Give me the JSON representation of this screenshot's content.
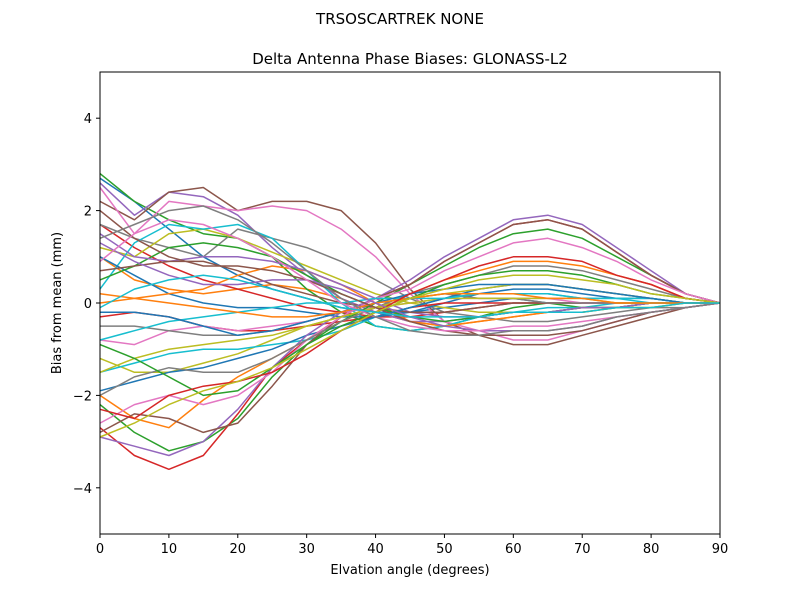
{
  "suptitle": "TRSOSCARTREK    NONE",
  "chart_data": {
    "type": "line",
    "title": "Delta Antenna Phase Biases: GLONASS-L2",
    "xlabel": "Elvation angle (degrees)",
    "ylabel": "Bias from mean (mm)",
    "xlim": [
      0,
      90
    ],
    "ylim": [
      -5,
      5
    ],
    "xticks": [
      0,
      10,
      20,
      30,
      40,
      50,
      60,
      70,
      80,
      90
    ],
    "yticks": [
      -4,
      -2,
      0,
      2,
      4
    ],
    "grid": false,
    "legend": "none",
    "x": [
      0,
      5,
      10,
      15,
      20,
      25,
      30,
      35,
      40,
      45,
      50,
      55,
      60,
      65,
      70,
      75,
      80,
      85,
      90
    ],
    "colors": [
      "#1f77b4",
      "#ff7f0e",
      "#2ca02c",
      "#d62728",
      "#9467bd",
      "#8c564b",
      "#e377c2",
      "#7f7f7f",
      "#bcbd22",
      "#17becf"
    ],
    "series": [
      {
        "values": [
          2.7,
          2.2,
          1.6,
          1.0,
          0.6,
          0.3,
          0.1,
          -0.1,
          -0.2,
          -0.2,
          -0.1,
          0.0,
          0.1,
          0.0,
          0.0,
          0.0,
          0.0,
          0.0,
          0.0
        ]
      },
      {
        "values": [
          1.0,
          0.5,
          0.3,
          0.2,
          0.3,
          0.4,
          0.3,
          0.1,
          -0.2,
          -0.4,
          -0.5,
          -0.4,
          -0.3,
          -0.2,
          -0.2,
          -0.1,
          -0.1,
          0.0,
          0.0
        ]
      },
      {
        "values": [
          2.8,
          2.2,
          1.8,
          1.5,
          1.4,
          1.0,
          0.3,
          -0.2,
          -0.5,
          -0.6,
          -0.5,
          -0.3,
          -0.1,
          0.0,
          -0.1,
          -0.1,
          0.0,
          0.0,
          0.0
        ]
      },
      {
        "values": [
          1.7,
          1.2,
          0.8,
          0.5,
          0.3,
          0.1,
          -0.1,
          -0.2,
          -0.3,
          -0.3,
          -0.2,
          -0.1,
          0.0,
          0.0,
          0.0,
          0.0,
          0.0,
          0.0,
          0.0
        ]
      },
      {
        "values": [
          2.6,
          1.9,
          2.4,
          2.3,
          1.9,
          1.2,
          0.6,
          0.1,
          -0.2,
          -0.4,
          -0.4,
          -0.3,
          -0.2,
          -0.2,
          -0.1,
          -0.1,
          0.0,
          0.0,
          0.0
        ]
      },
      {
        "values": [
          2.2,
          1.8,
          2.4,
          2.5,
          2.0,
          2.2,
          2.2,
          2.0,
          1.3,
          0.3,
          -0.4,
          -0.7,
          -0.9,
          -0.9,
          -0.7,
          -0.5,
          -0.3,
          -0.1,
          0.0
        ]
      },
      {
        "values": [
          2.5,
          1.5,
          2.2,
          2.1,
          2.0,
          2.1,
          2.0,
          1.6,
          1.0,
          0.2,
          -0.4,
          -0.6,
          -0.8,
          -0.8,
          -0.6,
          -0.4,
          -0.2,
          -0.1,
          0.0
        ]
      },
      {
        "values": [
          1.7,
          1.4,
          1.2,
          1.0,
          1.6,
          1.4,
          1.2,
          0.9,
          0.5,
          0.1,
          -0.2,
          -0.3,
          -0.4,
          -0.4,
          -0.3,
          -0.2,
          -0.1,
          -0.1,
          0.0
        ]
      },
      {
        "values": [
          1.2,
          1.0,
          1.5,
          1.6,
          1.4,
          1.1,
          0.8,
          0.5,
          0.2,
          0.0,
          -0.1,
          -0.2,
          -0.2,
          -0.2,
          -0.2,
          -0.1,
          -0.1,
          0.0,
          0.0
        ]
      },
      {
        "values": [
          0.3,
          1.3,
          1.7,
          1.6,
          1.7,
          1.4,
          0.7,
          0.0,
          -0.5,
          -0.6,
          -0.5,
          -0.3,
          -0.2,
          -0.1,
          -0.1,
          0.0,
          0.0,
          0.0,
          0.0
        ]
      },
      {
        "values": [
          1.0,
          0.6,
          0.2,
          0.0,
          -0.1,
          -0.1,
          -0.2,
          -0.3,
          -0.3,
          -0.2,
          0.0,
          0.2,
          0.3,
          0.3,
          0.2,
          0.1,
          0.1,
          0.0,
          0.0
        ]
      },
      {
        "values": [
          0.0,
          0.1,
          0.2,
          0.3,
          0.6,
          0.8,
          0.7,
          0.4,
          0.0,
          -0.4,
          -0.5,
          -0.4,
          -0.3,
          -0.2,
          -0.1,
          -0.1,
          0.0,
          0.0,
          0.0
        ]
      },
      {
        "values": [
          0.5,
          0.8,
          1.2,
          1.3,
          1.2,
          1.0,
          0.6,
          0.2,
          -0.1,
          -0.3,
          -0.4,
          -0.3,
          -0.2,
          -0.2,
          -0.1,
          -0.1,
          0.0,
          0.0,
          0.0
        ]
      },
      {
        "values": [
          -0.3,
          -0.2,
          -0.3,
          -0.5,
          -0.6,
          -0.6,
          -0.5,
          -0.4,
          -0.3,
          -0.1,
          0.0,
          0.0,
          0.0,
          0.0,
          0.0,
          0.0,
          0.0,
          0.0,
          0.0
        ]
      },
      {
        "values": [
          1.5,
          1.0,
          0.9,
          1.0,
          1.0,
          0.9,
          0.7,
          0.4,
          0.1,
          -0.2,
          -0.3,
          -0.3,
          -0.2,
          -0.2,
          -0.1,
          -0.1,
          0.0,
          0.0,
          0.0
        ]
      },
      {
        "values": [
          0.7,
          0.8,
          0.9,
          0.9,
          0.7,
          0.4,
          0.2,
          0.0,
          -0.1,
          -0.2,
          -0.2,
          -0.1,
          0.0,
          0.0,
          0.0,
          0.0,
          0.0,
          0.0,
          0.0
        ]
      },
      {
        "values": [
          -0.8,
          -0.9,
          -0.6,
          -0.5,
          -0.6,
          -0.5,
          -0.4,
          -0.2,
          -0.1,
          0.0,
          0.1,
          0.1,
          0.1,
          0.1,
          0.0,
          0.0,
          0.0,
          0.0,
          0.0
        ]
      },
      {
        "values": [
          -0.5,
          -0.5,
          -0.6,
          -0.7,
          -0.7,
          -0.6,
          -0.4,
          -0.2,
          0.0,
          0.1,
          0.2,
          0.1,
          0.1,
          0.0,
          0.0,
          0.0,
          0.0,
          0.0,
          0.0
        ]
      },
      {
        "values": [
          -1.2,
          -1.5,
          -1.5,
          -1.3,
          -1.1,
          -0.8,
          -0.5,
          -0.3,
          -0.1,
          0.0,
          0.1,
          0.1,
          0.1,
          0.1,
          0.1,
          0.0,
          0.0,
          0.0,
          0.0
        ]
      },
      {
        "values": [
          -1.5,
          -1.3,
          -1.1,
          -1.0,
          -1.0,
          -0.9,
          -0.8,
          -0.6,
          -0.3,
          -0.1,
          0.1,
          0.2,
          0.2,
          0.2,
          0.1,
          0.1,
          0.0,
          0.0,
          0.0
        ]
      },
      {
        "values": [
          -1.9,
          -1.7,
          -1.5,
          -1.4,
          -1.2,
          -1.0,
          -0.7,
          -0.5,
          -0.3,
          -0.1,
          0.1,
          0.3,
          0.4,
          0.4,
          0.3,
          0.2,
          0.1,
          0.0,
          0.0
        ]
      },
      {
        "values": [
          -2.0,
          -2.5,
          -2.7,
          -2.1,
          -1.6,
          -1.2,
          -0.8,
          -0.4,
          -0.1,
          0.2,
          0.5,
          0.7,
          0.9,
          0.9,
          0.8,
          0.6,
          0.4,
          0.1,
          0.0
        ]
      },
      {
        "values": [
          -2.2,
          -2.8,
          -3.2,
          -3.0,
          -2.5,
          -1.6,
          -0.9,
          -0.4,
          0.0,
          0.4,
          0.8,
          1.2,
          1.5,
          1.6,
          1.4,
          1.0,
          0.6,
          0.2,
          0.0
        ]
      },
      {
        "values": [
          -2.7,
          -3.3,
          -3.6,
          -3.3,
          -2.4,
          -1.4,
          -0.8,
          -0.3,
          0.1,
          0.4,
          0.9,
          1.3,
          1.7,
          1.8,
          1.6,
          1.1,
          0.6,
          0.2,
          0.0
        ]
      },
      {
        "values": [
          -2.9,
          -3.1,
          -3.3,
          -3.0,
          -2.3,
          -1.4,
          -0.7,
          -0.2,
          0.1,
          0.5,
          1.0,
          1.4,
          1.8,
          1.9,
          1.7,
          1.2,
          0.7,
          0.2,
          0.0
        ]
      },
      {
        "values": [
          -2.8,
          -2.4,
          -2.5,
          -2.8,
          -2.6,
          -1.8,
          -0.9,
          -0.3,
          0.1,
          0.4,
          0.9,
          1.3,
          1.7,
          1.8,
          1.6,
          1.1,
          0.6,
          0.2,
          0.0
        ]
      },
      {
        "values": [
          -2.6,
          -2.2,
          -2.0,
          -2.2,
          -2.0,
          -1.5,
          -0.8,
          -0.3,
          0.1,
          0.3,
          0.7,
          1.0,
          1.3,
          1.4,
          1.2,
          0.9,
          0.5,
          0.2,
          0.0
        ]
      },
      {
        "values": [
          -2.0,
          -1.6,
          -1.4,
          -1.5,
          -1.5,
          -1.2,
          -0.8,
          -0.4,
          -0.1,
          0.2,
          0.4,
          0.6,
          0.8,
          0.8,
          0.7,
          0.5,
          0.3,
          0.1,
          0.0
        ]
      },
      {
        "values": [
          -1.5,
          -1.2,
          -1.0,
          -0.9,
          -0.8,
          -0.7,
          -0.5,
          -0.3,
          -0.1,
          0.1,
          0.2,
          0.3,
          0.4,
          0.4,
          0.3,
          0.2,
          0.1,
          0.0,
          0.0
        ]
      },
      {
        "values": [
          -0.8,
          -0.6,
          -0.4,
          -0.3,
          -0.2,
          -0.1,
          0.0,
          0.0,
          0.1,
          0.1,
          0.1,
          0.2,
          0.2,
          0.2,
          0.1,
          0.1,
          0.1,
          0.0,
          0.0
        ]
      },
      {
        "values": [
          -0.2,
          -0.2,
          -0.3,
          -0.5,
          -0.7,
          -0.6,
          -0.4,
          -0.2,
          0.0,
          0.2,
          0.3,
          0.4,
          0.4,
          0.4,
          0.3,
          0.2,
          0.1,
          0.0,
          0.0
        ]
      },
      {
        "values": [
          0.2,
          0.1,
          0.0,
          -0.1,
          -0.2,
          -0.3,
          -0.3,
          -0.2,
          0.0,
          0.1,
          0.2,
          0.2,
          0.2,
          0.1,
          0.1,
          0.0,
          0.0,
          0.0,
          0.0
        ]
      },
      {
        "values": [
          -0.9,
          -1.2,
          -1.6,
          -2.0,
          -1.9,
          -1.4,
          -0.9,
          -0.5,
          -0.2,
          0.1,
          0.4,
          0.6,
          0.7,
          0.7,
          0.6,
          0.4,
          0.2,
          0.1,
          0.0
        ]
      },
      {
        "values": [
          -2.3,
          -2.5,
          -2.0,
          -1.8,
          -1.7,
          -1.5,
          -1.1,
          -0.6,
          -0.2,
          0.2,
          0.5,
          0.8,
          1.0,
          1.0,
          0.9,
          0.6,
          0.4,
          0.1,
          0.0
        ]
      },
      {
        "values": [
          1.3,
          0.9,
          0.6,
          0.4,
          0.4,
          0.5,
          0.5,
          0.3,
          0.0,
          -0.3,
          -0.5,
          -0.6,
          -0.6,
          -0.6,
          -0.5,
          -0.3,
          -0.2,
          -0.1,
          0.0
        ]
      },
      {
        "values": [
          2.0,
          1.4,
          1.0,
          0.8,
          0.8,
          0.7,
          0.5,
          0.2,
          -0.1,
          -0.4,
          -0.6,
          -0.7,
          -0.7,
          -0.7,
          -0.6,
          -0.4,
          -0.2,
          -0.1,
          0.0
        ]
      },
      {
        "values": [
          0.9,
          1.5,
          1.8,
          1.7,
          1.4,
          1.0,
          0.5,
          0.0,
          -0.3,
          -0.5,
          -0.6,
          -0.6,
          -0.5,
          -0.5,
          -0.4,
          -0.3,
          -0.2,
          -0.1,
          0.0
        ]
      },
      {
        "values": [
          1.4,
          1.7,
          2.0,
          2.1,
          1.8,
          1.3,
          0.7,
          0.1,
          -0.3,
          -0.6,
          -0.7,
          -0.7,
          -0.6,
          -0.6,
          -0.5,
          -0.3,
          -0.2,
          -0.1,
          0.0
        ]
      },
      {
        "values": [
          -2.9,
          -2.6,
          -2.2,
          -1.9,
          -1.7,
          -1.4,
          -1.0,
          -0.6,
          -0.2,
          0.1,
          0.3,
          0.5,
          0.6,
          0.6,
          0.5,
          0.4,
          0.2,
          0.1,
          0.0
        ]
      },
      {
        "values": [
          -0.1,
          0.3,
          0.5,
          0.6,
          0.5,
          0.3,
          0.1,
          -0.1,
          -0.2,
          -0.3,
          -0.3,
          -0.3,
          -0.2,
          -0.2,
          -0.2,
          -0.1,
          -0.1,
          0.0,
          0.0
        ]
      }
    ]
  }
}
